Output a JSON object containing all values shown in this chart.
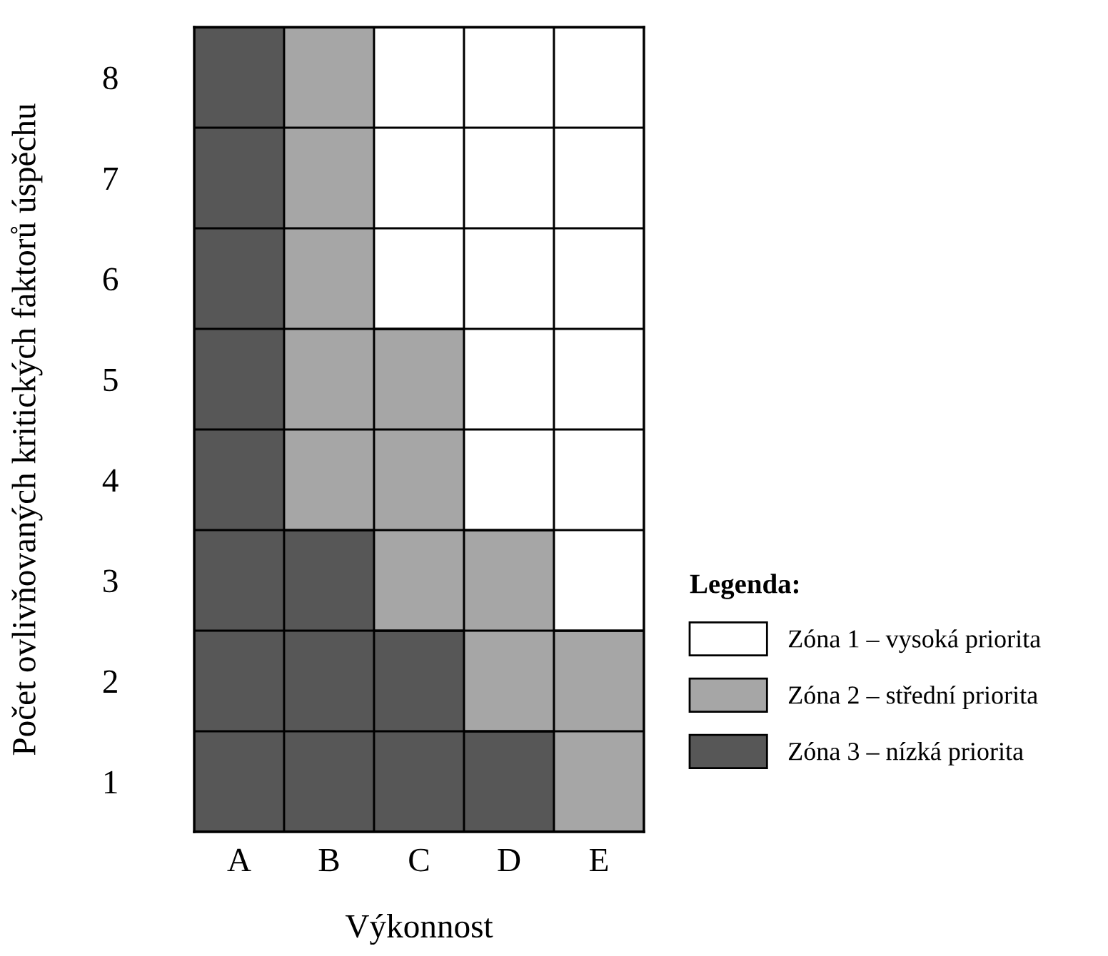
{
  "chart_data": {
    "type": "bar",
    "stacked": true,
    "xlabel": "Výkonnost",
    "ylabel": "Počet ovlivňovaných kritických faktorů úspěchu",
    "legend_title": "Legenda:",
    "legend": "right",
    "grid": "y",
    "categories": [
      "A",
      "B",
      "C",
      "D",
      "E"
    ],
    "ylim": [
      0,
      8
    ],
    "yticks": [
      {
        "value": 0,
        "label": null
      },
      {
        "value": 0.5,
        "label": "1"
      },
      {
        "value": 1,
        "label": null
      },
      {
        "value": 1.5,
        "label": "2"
      },
      {
        "value": 2,
        "label": null
      },
      {
        "value": 2.5,
        "label": "3"
      },
      {
        "value": 3,
        "label": null
      },
      {
        "value": 3.5,
        "label": "4"
      },
      {
        "value": 4,
        "label": null
      },
      {
        "value": 4.5,
        "label": "5"
      },
      {
        "value": 5,
        "label": null
      },
      {
        "value": 5.5,
        "label": "6"
      },
      {
        "value": 6,
        "label": null
      },
      {
        "value": 6.5,
        "label": "7"
      },
      {
        "value": 7,
        "label": null
      },
      {
        "value": 7.5,
        "label": "8"
      },
      {
        "value": 8,
        "label": null
      }
    ],
    "series": [
      {
        "name": "Zóna 3 – nízká priorita",
        "color": "#575757",
        "values": [
          8,
          3,
          2,
          1,
          0
        ]
      },
      {
        "name": "Zóna 2 – střední priorita",
        "color": "#a6a6a6",
        "values": [
          0,
          5,
          3,
          2,
          2
        ]
      },
      {
        "name": "Zóna 1 – vysoká priorita",
        "color": "#ffffff",
        "values": [
          0,
          0,
          3,
          5,
          6
        ]
      }
    ]
  }
}
